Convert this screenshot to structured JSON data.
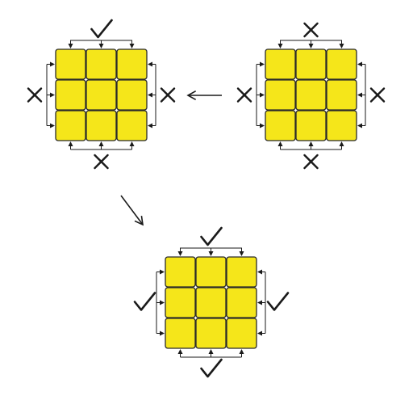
{
  "colors": {
    "tile_fill": "#f5e61a",
    "tile_stroke": "#2a2a2a",
    "ink": "#1a1a1a",
    "background": "#ffffff"
  },
  "grid": {
    "rows": 3,
    "cols": 3
  },
  "panels": [
    {
      "id": "top-left",
      "marks": {
        "top": "check",
        "bottom": "cross",
        "left": "cross",
        "right": "cross"
      }
    },
    {
      "id": "top-right",
      "marks": {
        "top": "cross",
        "bottom": "cross",
        "left": "cross",
        "right": "cross"
      }
    },
    {
      "id": "bottom",
      "marks": {
        "top": "check",
        "bottom": "check",
        "left": "check",
        "right": "check"
      }
    }
  ],
  "arrows": [
    {
      "id": "arrow-left",
      "from": "top-right",
      "to": "top-left",
      "direction": "left"
    },
    {
      "id": "arrow-down-right",
      "from": "top-left",
      "to": "bottom",
      "direction": "down-right"
    }
  ]
}
